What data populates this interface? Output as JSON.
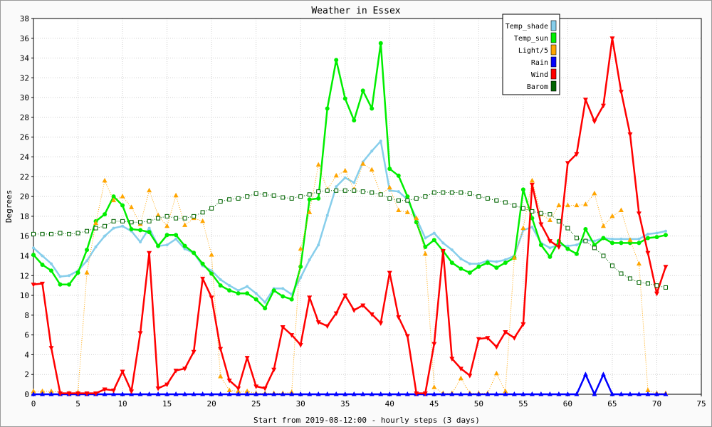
{
  "chart_data": {
    "type": "line",
    "title": "Weather in Essex",
    "xlabel": "Start from 2019-08-12:00 - hourly steps (3 days)",
    "ylabel": "Degrees",
    "xlim": [
      0,
      75
    ],
    "ylim": [
      0,
      38
    ],
    "xticks": [
      0,
      5,
      10,
      15,
      20,
      25,
      30,
      35,
      40,
      45,
      50,
      55,
      60,
      65,
      70,
      75
    ],
    "yticks": [
      0,
      2,
      4,
      6,
      8,
      10,
      12,
      14,
      16,
      18,
      20,
      22,
      24,
      26,
      28,
      30,
      32,
      34,
      36,
      38
    ],
    "grid": true,
    "legend_position": "top-right",
    "x": [
      0,
      1,
      2,
      3,
      4,
      5,
      6,
      7,
      8,
      9,
      10,
      11,
      12,
      13,
      14,
      15,
      16,
      17,
      18,
      19,
      20,
      21,
      22,
      23,
      24,
      25,
      26,
      27,
      28,
      29,
      30,
      31,
      32,
      33,
      34,
      35,
      36,
      37,
      38,
      39,
      40,
      41,
      42,
      43,
      44,
      45,
      46,
      47,
      48,
      49,
      50,
      51,
      52,
      53,
      54,
      55,
      56,
      57,
      58,
      59,
      60,
      61,
      62,
      63,
      64,
      65,
      66,
      67,
      68,
      69,
      70,
      71
    ],
    "series": [
      {
        "name": "Temp_shade",
        "color": "#87ceeb",
        "values": [
          14.8,
          14.0,
          13.2,
          11.9,
          12.0,
          12.5,
          13.5,
          14.9,
          16.0,
          16.8,
          17.0,
          16.5,
          15.4,
          16.8,
          15.0,
          15.1,
          15.7,
          14.7,
          14.3,
          13.0,
          12.5,
          11.6,
          11.0,
          10.5,
          10.9,
          10.2,
          9.3,
          10.7,
          10.7,
          10.1,
          11.8,
          13.6,
          15.1,
          18.1,
          21.0,
          21.9,
          21.4,
          23.5,
          24.6,
          25.6,
          20.6,
          20.5,
          19.7,
          17.8,
          15.8,
          16.3,
          15.3,
          14.6,
          13.7,
          13.2,
          13.2,
          13.5,
          13.4,
          13.6,
          14.0,
          16.6,
          16.9,
          15.3,
          14.8,
          15.1,
          15.0,
          15.1,
          15.6,
          15.5,
          15.8,
          15.7,
          15.7,
          15.7,
          15.7,
          16.2,
          16.3,
          16.5
        ]
      },
      {
        "name": "Temp_sun",
        "color": "#00ee00",
        "values": [
          14.1,
          13.1,
          12.5,
          11.1,
          11.1,
          12.3,
          14.6,
          17.5,
          18.2,
          20.0,
          19.1,
          16.7,
          16.6,
          16.4,
          15.0,
          16.1,
          16.1,
          15.0,
          14.3,
          13.2,
          12.2,
          11.0,
          10.5,
          10.2,
          10.2,
          9.6,
          8.7,
          10.5,
          9.9,
          9.6,
          12.9,
          19.7,
          19.8,
          28.9,
          33.8,
          29.9,
          27.7,
          30.7,
          28.9,
          35.5,
          22.8,
          22.1,
          20.0,
          17.4,
          14.9,
          15.6,
          14.5,
          13.3,
          12.7,
          12.3,
          12.9,
          13.3,
          12.8,
          13.3,
          13.8,
          20.7,
          17.8,
          15.1,
          13.9,
          15.5,
          14.7,
          14.2,
          16.7,
          15.1,
          15.8,
          15.3,
          15.3,
          15.3,
          15.3,
          15.8,
          15.9,
          16.1
        ]
      },
      {
        "name": "Light/5",
        "color": "#ffa500",
        "values": [
          0.3,
          0.3,
          0.3,
          0.2,
          0.1,
          0.2,
          12.3,
          17.3,
          21.6,
          19.6,
          20.0,
          18.9,
          17.2,
          20.6,
          18.1,
          17.0,
          20.1,
          17.1,
          17.8,
          17.5,
          14.1,
          1.8,
          0.4,
          0.3,
          0.3,
          0.1,
          0.1,
          0.1,
          0.1,
          0.2,
          14.7,
          18.4,
          23.2,
          20.7,
          22.1,
          22.6,
          20.7,
          23.3,
          22.7,
          20.2,
          20.9,
          18.6,
          18.4,
          17.8,
          14.2,
          0.7,
          0.1,
          0.1,
          1.6,
          0.1,
          0.1,
          0.1,
          2.1,
          0.3,
          13.8,
          16.8,
          21.6,
          18.2,
          17.6,
          19.1,
          19.1,
          19.1,
          19.2,
          20.3,
          17.0,
          18.0,
          18.6,
          15.6,
          13.2,
          0.4,
          0.1,
          0.1
        ]
      },
      {
        "name": "Rain",
        "color": "#0000ff",
        "values": [
          0,
          0,
          0,
          0,
          0,
          0,
          0,
          0,
          0,
          0,
          0,
          0,
          0,
          0,
          0,
          0,
          0,
          0,
          0,
          0,
          0,
          0,
          0,
          0,
          0,
          0,
          0,
          0,
          0,
          0,
          0,
          0,
          0,
          0,
          0,
          0,
          0,
          0,
          0,
          0,
          0,
          0,
          0,
          0,
          0,
          0,
          0,
          0,
          0,
          0,
          0,
          0,
          0,
          0,
          0,
          0,
          0,
          0,
          0,
          0,
          0,
          0,
          2,
          0,
          2,
          0,
          0,
          0,
          0,
          0,
          0,
          0
        ]
      },
      {
        "name": "Wind",
        "color": "#ff0000",
        "values": [
          11.1,
          11.2,
          4.7,
          0.1,
          0.1,
          0.1,
          0.1,
          0.1,
          0.5,
          0.4,
          2.3,
          0.3,
          6.2,
          14.3,
          0.6,
          1.0,
          2.4,
          2.6,
          4.3,
          11.7,
          9.8,
          4.6,
          1.4,
          0.6,
          3.7,
          0.8,
          0.6,
          2.5,
          6.8,
          6.0,
          5.0,
          9.8,
          7.3,
          6.9,
          8.2,
          10.0,
          8.5,
          9.0,
          8.1,
          7.2,
          12.3,
          7.8,
          5.9,
          0.1,
          0.1,
          5.1,
          14.5,
          3.6,
          2.6,
          1.9,
          5.6,
          5.7,
          4.8,
          6.3,
          5.7,
          7.1,
          21.2,
          17.2,
          15.5,
          14.9,
          23.4,
          24.3,
          29.8,
          27.6,
          29.2,
          36.0,
          30.6,
          26.3,
          18.3,
          14.3,
          10.2,
          12.9
        ]
      },
      {
        "name": "Barom",
        "color": "#006400",
        "values": [
          16.2,
          16.2,
          16.2,
          16.3,
          16.2,
          16.3,
          16.5,
          16.8,
          17.0,
          17.5,
          17.5,
          17.4,
          17.4,
          17.5,
          17.8,
          18.0,
          17.8,
          17.8,
          18.0,
          18.4,
          18.8,
          19.5,
          19.7,
          19.8,
          20.0,
          20.3,
          20.2,
          20.1,
          19.9,
          19.8,
          20.0,
          20.2,
          20.5,
          20.6,
          20.6,
          20.6,
          20.6,
          20.5,
          20.4,
          20.2,
          19.8,
          19.6,
          19.6,
          19.8,
          20.0,
          20.4,
          20.4,
          20.4,
          20.4,
          20.3,
          20.0,
          19.8,
          19.6,
          19.4,
          19.1,
          18.8,
          18.5,
          18.3,
          18.2,
          17.5,
          16.8,
          15.8,
          15.5,
          14.8,
          14.0,
          13.0,
          12.2,
          11.7,
          11.3,
          11.2,
          11.0,
          10.8
        ]
      }
    ]
  }
}
